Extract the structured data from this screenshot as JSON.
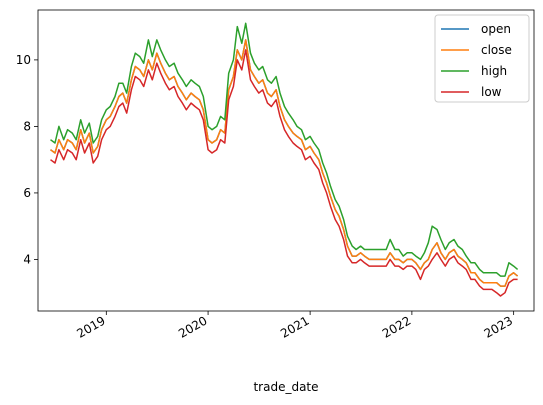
{
  "chart_data": {
    "type": "line",
    "xlabel": "trade_date",
    "ylabel": "",
    "x_ticks": [
      "2019",
      "2020",
      "2021",
      "2022",
      "2023"
    ],
    "y_ticks": [
      4,
      6,
      8,
      10
    ],
    "xlim": [
      "2018-05-01",
      "2023-03-15"
    ],
    "ylim": [
      2.45,
      11.5
    ],
    "grid": false,
    "legend": "top-right",
    "x": [
      "2018-06-15",
      "2018-07-01",
      "2018-07-15",
      "2018-08-01",
      "2018-08-15",
      "2018-09-01",
      "2018-09-15",
      "2018-10-01",
      "2018-10-15",
      "2018-11-01",
      "2018-11-15",
      "2018-12-01",
      "2018-12-15",
      "2019-01-01",
      "2019-01-15",
      "2019-02-01",
      "2019-02-15",
      "2019-03-01",
      "2019-03-15",
      "2019-04-01",
      "2019-04-15",
      "2019-05-01",
      "2019-05-15",
      "2019-06-01",
      "2019-06-15",
      "2019-07-01",
      "2019-07-15",
      "2019-08-01",
      "2019-08-15",
      "2019-09-01",
      "2019-09-15",
      "2019-10-01",
      "2019-10-15",
      "2019-11-01",
      "2019-11-15",
      "2019-12-01",
      "2019-12-15",
      "2020-01-01",
      "2020-01-15",
      "2020-02-01",
      "2020-02-15",
      "2020-03-01",
      "2020-03-15",
      "2020-04-01",
      "2020-04-15",
      "2020-05-01",
      "2020-05-15",
      "2020-06-01",
      "2020-06-15",
      "2020-07-01",
      "2020-07-15",
      "2020-08-01",
      "2020-08-15",
      "2020-09-01",
      "2020-09-15",
      "2020-10-01",
      "2020-10-15",
      "2020-11-01",
      "2020-11-15",
      "2020-12-01",
      "2020-12-15",
      "2021-01-01",
      "2021-01-15",
      "2021-02-01",
      "2021-02-15",
      "2021-03-01",
      "2021-03-15",
      "2021-04-01",
      "2021-04-15",
      "2021-05-01",
      "2021-05-15",
      "2021-06-01",
      "2021-06-15",
      "2021-07-01",
      "2021-07-15",
      "2021-08-01",
      "2021-08-15",
      "2021-09-01",
      "2021-09-15",
      "2021-10-01",
      "2021-10-15",
      "2021-11-01",
      "2021-11-15",
      "2021-12-01",
      "2021-12-15",
      "2022-01-01",
      "2022-01-15",
      "2022-02-01",
      "2022-02-15",
      "2022-03-01",
      "2022-03-15",
      "2022-04-01",
      "2022-04-15",
      "2022-05-01",
      "2022-05-15",
      "2022-06-01",
      "2022-06-15",
      "2022-07-01",
      "2022-07-15",
      "2022-08-01",
      "2022-08-15",
      "2022-09-01",
      "2022-09-15",
      "2022-10-01",
      "2022-10-15",
      "2022-11-01",
      "2022-11-15",
      "2022-12-01",
      "2022-12-15",
      "2023-01-01",
      "2023-01-15"
    ],
    "series": [
      {
        "name": "open",
        "color": "#1f77b4",
        "values": [
          7.3,
          7.2,
          7.6,
          7.3,
          7.6,
          7.5,
          7.3,
          7.9,
          7.5,
          7.8,
          7.2,
          7.4,
          7.9,
          8.2,
          8.3,
          8.6,
          8.9,
          9.0,
          8.7,
          9.4,
          9.8,
          9.7,
          9.5,
          10.0,
          9.7,
          10.2,
          9.9,
          9.6,
          9.4,
          9.5,
          9.2,
          9.0,
          8.8,
          9.0,
          8.9,
          8.8,
          8.5,
          7.6,
          7.5,
          7.6,
          7.9,
          7.8,
          9.1,
          9.5,
          10.3,
          10.0,
          10.6,
          9.7,
          9.5,
          9.3,
          9.4,
          9.0,
          8.9,
          9.1,
          8.6,
          8.2,
          8.0,
          7.8,
          7.7,
          7.6,
          7.3,
          7.4,
          7.2,
          7.0,
          6.6,
          6.3,
          5.9,
          5.5,
          5.3,
          4.9,
          4.4,
          4.1,
          4.1,
          4.2,
          4.1,
          4.0,
          4.0,
          4.0,
          4.0,
          4.0,
          4.2,
          4.0,
          4.0,
          3.9,
          4.0,
          4.0,
          3.9,
          3.7,
          3.9,
          4.0,
          4.3,
          4.5,
          4.2,
          4.0,
          4.2,
          4.3,
          4.1,
          4.0,
          3.9,
          3.6,
          3.6,
          3.4,
          3.3,
          3.3,
          3.3,
          3.3,
          3.2,
          3.2,
          3.5,
          3.6,
          3.5
        ]
      },
      {
        "name": "close",
        "color": "#ff7f0e",
        "values": [
          7.3,
          7.2,
          7.6,
          7.3,
          7.6,
          7.5,
          7.3,
          7.9,
          7.5,
          7.8,
          7.2,
          7.4,
          7.9,
          8.2,
          8.3,
          8.6,
          8.9,
          9.0,
          8.7,
          9.4,
          9.8,
          9.7,
          9.5,
          10.0,
          9.7,
          10.2,
          9.9,
          9.6,
          9.4,
          9.5,
          9.2,
          9.0,
          8.8,
          9.0,
          8.9,
          8.8,
          8.5,
          7.6,
          7.5,
          7.6,
          7.9,
          7.8,
          9.1,
          9.5,
          10.3,
          10.0,
          10.6,
          9.7,
          9.5,
          9.3,
          9.4,
          9.0,
          8.9,
          9.1,
          8.6,
          8.2,
          8.0,
          7.8,
          7.7,
          7.6,
          7.3,
          7.4,
          7.2,
          7.0,
          6.6,
          6.3,
          5.9,
          5.5,
          5.3,
          4.9,
          4.4,
          4.1,
          4.1,
          4.2,
          4.1,
          4.0,
          4.0,
          4.0,
          4.0,
          4.0,
          4.2,
          4.0,
          4.0,
          3.9,
          4.0,
          4.0,
          3.9,
          3.7,
          3.9,
          4.0,
          4.3,
          4.5,
          4.2,
          4.0,
          4.2,
          4.3,
          4.1,
          4.0,
          3.9,
          3.6,
          3.6,
          3.4,
          3.3,
          3.3,
          3.3,
          3.3,
          3.2,
          3.2,
          3.5,
          3.6,
          3.5
        ]
      },
      {
        "name": "high",
        "color": "#2ca02c",
        "values": [
          7.6,
          7.5,
          8.0,
          7.6,
          7.9,
          7.8,
          7.6,
          8.2,
          7.8,
          8.1,
          7.5,
          7.7,
          8.2,
          8.5,
          8.6,
          8.9,
          9.3,
          9.3,
          9.0,
          9.8,
          10.2,
          10.1,
          9.9,
          10.6,
          10.1,
          10.6,
          10.3,
          10.0,
          9.8,
          9.9,
          9.6,
          9.4,
          9.2,
          9.4,
          9.3,
          9.2,
          8.9,
          8.0,
          7.9,
          8.0,
          8.3,
          8.2,
          9.6,
          10.0,
          11.0,
          10.5,
          11.1,
          10.2,
          9.9,
          9.7,
          9.8,
          9.4,
          9.3,
          9.5,
          9.0,
          8.6,
          8.4,
          8.2,
          8.0,
          7.9,
          7.6,
          7.7,
          7.5,
          7.3,
          6.9,
          6.6,
          6.2,
          5.8,
          5.6,
          5.2,
          4.7,
          4.4,
          4.3,
          4.4,
          4.3,
          4.3,
          4.3,
          4.3,
          4.3,
          4.3,
          4.6,
          4.3,
          4.3,
          4.1,
          4.2,
          4.2,
          4.1,
          4.0,
          4.2,
          4.5,
          5.0,
          4.9,
          4.6,
          4.3,
          4.5,
          4.6,
          4.4,
          4.3,
          4.1,
          3.9,
          3.9,
          3.7,
          3.6,
          3.6,
          3.6,
          3.6,
          3.5,
          3.5,
          3.9,
          3.8,
          3.7
        ]
      },
      {
        "name": "low",
        "color": "#d62728",
        "values": [
          7.0,
          6.9,
          7.3,
          7.0,
          7.3,
          7.2,
          7.0,
          7.6,
          7.2,
          7.5,
          6.9,
          7.1,
          7.6,
          7.9,
          8.0,
          8.3,
          8.6,
          8.7,
          8.4,
          9.1,
          9.5,
          9.4,
          9.2,
          9.7,
          9.4,
          9.9,
          9.6,
          9.3,
          9.1,
          9.2,
          8.9,
          8.7,
          8.5,
          8.7,
          8.6,
          8.5,
          8.2,
          7.3,
          7.2,
          7.3,
          7.6,
          7.5,
          8.8,
          9.2,
          10.0,
          9.7,
          10.3,
          9.4,
          9.2,
          9.0,
          9.1,
          8.7,
          8.6,
          8.8,
          8.3,
          7.9,
          7.7,
          7.5,
          7.4,
          7.3,
          7.0,
          7.1,
          6.9,
          6.7,
          6.3,
          6.0,
          5.6,
          5.2,
          5.0,
          4.6,
          4.1,
          3.9,
          3.9,
          4.0,
          3.9,
          3.8,
          3.8,
          3.8,
          3.8,
          3.8,
          4.0,
          3.8,
          3.8,
          3.7,
          3.8,
          3.8,
          3.7,
          3.4,
          3.7,
          3.8,
          4.0,
          4.2,
          4.0,
          3.8,
          4.0,
          4.1,
          3.9,
          3.8,
          3.7,
          3.4,
          3.4,
          3.2,
          3.1,
          3.1,
          3.1,
          3.0,
          2.9,
          3.0,
          3.3,
          3.4,
          3.4
        ]
      }
    ]
  }
}
